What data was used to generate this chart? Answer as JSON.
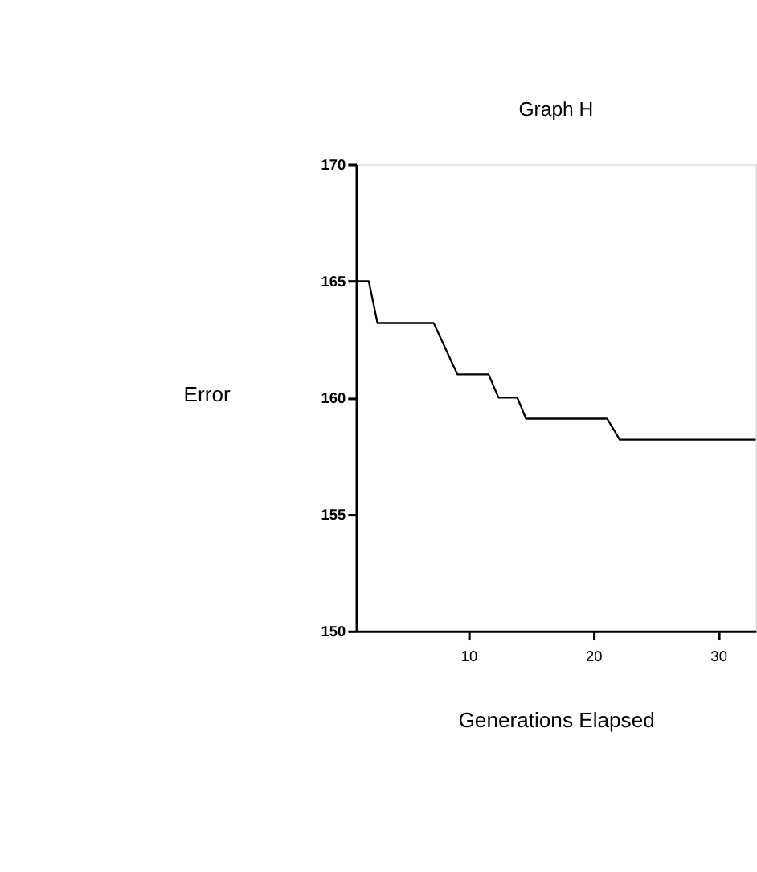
{
  "chart_data": {
    "type": "line",
    "title": "Graph H",
    "xlabel": "Generations Elapsed",
    "ylabel": "Error",
    "x": [
      1,
      2,
      2.7,
      7.2,
      9.1,
      11.6,
      12.4,
      13.9,
      14.6,
      21.1,
      22.1,
      33
    ],
    "series": [
      {
        "color": "#000000",
        "values": [
          165,
          165,
          163.2,
          163.2,
          161,
          161,
          160,
          160,
          159.1,
          159.1,
          158.2,
          158.2
        ]
      }
    ],
    "xlim": [
      1,
      33
    ],
    "xticks": [
      10,
      20,
      30
    ],
    "ylim": [
      150,
      170
    ],
    "yticks": [
      150,
      155,
      160,
      165,
      170
    ],
    "grid": false
  }
}
